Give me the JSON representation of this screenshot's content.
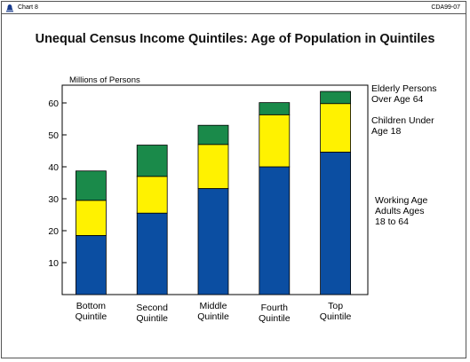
{
  "header": {
    "chart_label": "Chart 8",
    "doc_code": "CDA99-07"
  },
  "chart_data": {
    "type": "bar",
    "stacked": true,
    "title": "Unequal Census Income Quintiles: Age of Population in Quintiles",
    "ylabel": "Millions of Persons",
    "ylim": [
      0,
      70
    ],
    "yticks": [
      10,
      20,
      30,
      40,
      50,
      60
    ],
    "grid": false,
    "legend": "right",
    "categories": [
      "Bottom\nQuintile",
      "Second\nQuintile",
      "Middle\nQuintile",
      "Fourth\nQuintile",
      "Top\nQuintile"
    ],
    "series": [
      {
        "name": "Working Age\nAdults Ages\n18 to 64",
        "color": "#0b4ea2",
        "values": [
          18.5,
          25.5,
          33.2,
          40.0,
          44.6
        ]
      },
      {
        "name": "Children Under\nAge 18",
        "color": "#fff200",
        "values": [
          11.0,
          11.5,
          13.8,
          16.3,
          15.2
        ]
      },
      {
        "name": "Elderly Persons\nOver Age 64",
        "color": "#1a8a4a",
        "values": [
          9.2,
          9.8,
          6.0,
          3.8,
          3.8
        ]
      }
    ]
  }
}
